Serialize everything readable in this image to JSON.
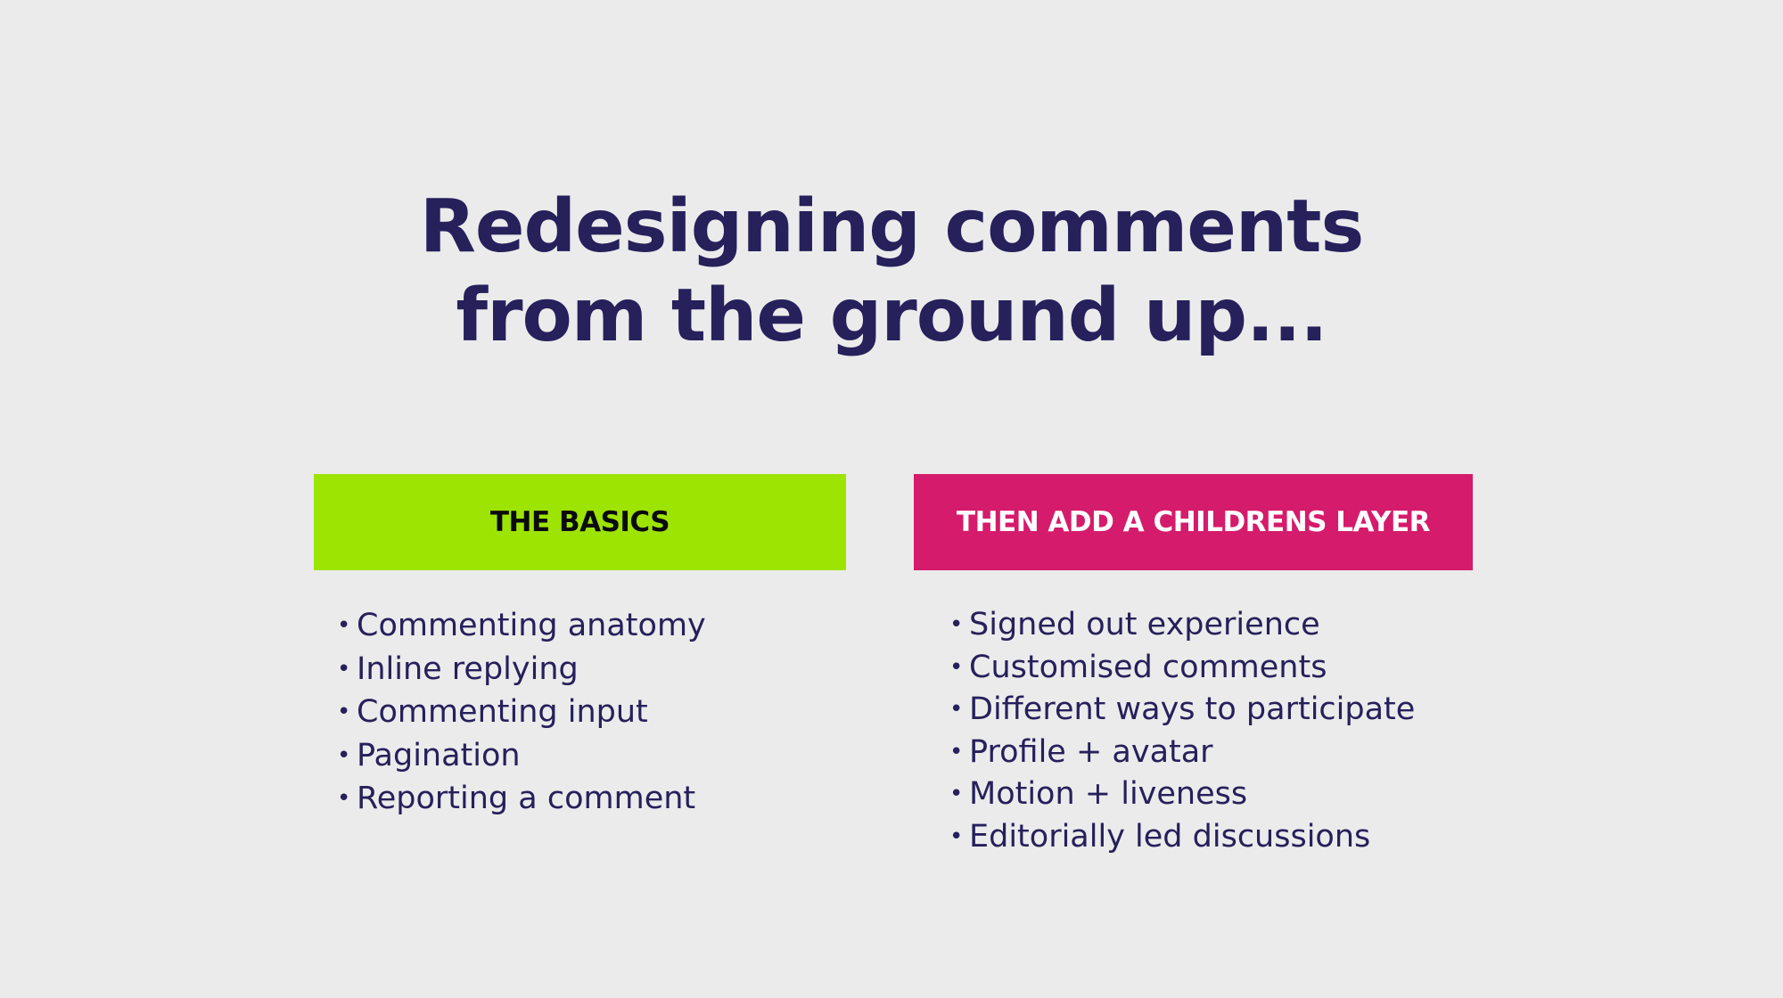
{
  "title": {
    "line1": "Redesigning comments",
    "line2": "from the ground up..."
  },
  "columns": [
    {
      "header": "THE BASICS",
      "color": "#9ee403",
      "items": [
        "Commenting anatomy",
        "Inline replying",
        "Commenting input",
        "Pagination",
        "Reporting a comment"
      ]
    },
    {
      "header": "THEN ADD A CHILDRENS LAYER",
      "color": "#d51b6b",
      "items": [
        "Signed out experience",
        "Customised comments",
        "Different ways to participate",
        "Profile + avatar",
        "Motion + liveness",
        "Editorially led discussions"
      ]
    }
  ],
  "colors": {
    "background": "#ebebeb",
    "text": "#26205b"
  }
}
